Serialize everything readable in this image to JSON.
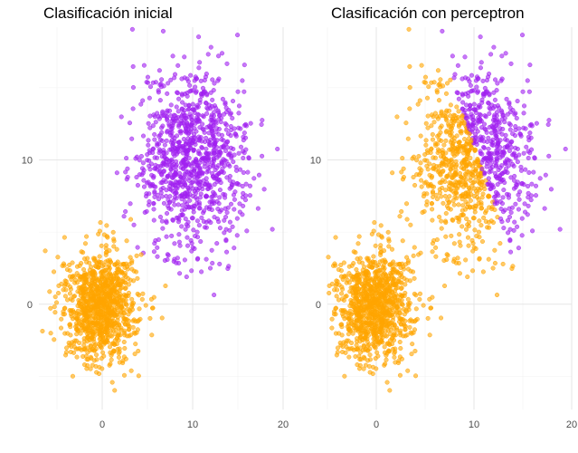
{
  "panels": [
    {
      "title": "Clasificación inicial",
      "point_colors": {
        "purple": "#a020f0",
        "orange": "#ffa500"
      }
    },
    {
      "title": "Clasificación con perceptron",
      "point_colors": {
        "purple": "#a020f0",
        "orange": "#ffa500"
      }
    }
  ],
  "chart_data": [
    {
      "type": "scatter",
      "title": "Clasificación inicial",
      "xlim": [
        -7,
        20.5
      ],
      "ylim": [
        -7.3,
        19.2
      ],
      "x_ticks": [
        0,
        10,
        20
      ],
      "y_ticks": [
        0,
        10
      ],
      "grid": true,
      "point_alpha": 0.6,
      "series": [
        {
          "color": "#a020f0",
          "n": 1000,
          "center": [
            10,
            10
          ],
          "spread": [
            3,
            3
          ]
        },
        {
          "color": "#ffa500",
          "n": 1000,
          "center": [
            0,
            0
          ],
          "spread": [
            2,
            2
          ]
        }
      ],
      "classification": "true_class"
    },
    {
      "type": "scatter",
      "title": "Clasificación con perceptron",
      "xlim": [
        -5,
        20
      ],
      "ylim": [
        -7.3,
        19.2
      ],
      "x_ticks": [
        0,
        10,
        20
      ],
      "y_ticks": [
        0,
        10
      ],
      "grid": true,
      "point_alpha": 0.6,
      "series": [
        {
          "color": "#a020f0",
          "n": 1000,
          "center": [
            10,
            10
          ],
          "spread": [
            3,
            3
          ]
        },
        {
          "color": "#ffa500",
          "n": 1000,
          "center": [
            0,
            0
          ],
          "spread": [
            2,
            2
          ]
        }
      ],
      "classification": "linear_boundary",
      "boundary": {
        "a": 1,
        "b": 0.5,
        "c": 15.5
      }
    }
  ]
}
